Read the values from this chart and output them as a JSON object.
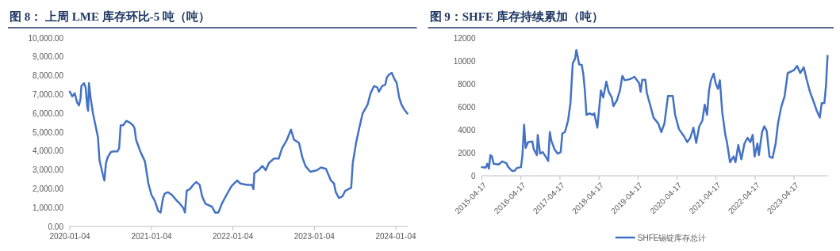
{
  "chart_data": [
    {
      "type": "line",
      "title": "图 8：  上周 LME 库存环比-5 吨（吨）",
      "series": [
        {
          "color": "#4472c4",
          "x": [
            "2020-01-04",
            "2020-01-15",
            "2020-01-26",
            "2020-02-06",
            "2020-02-14",
            "2020-02-21",
            "2020-02-25",
            "2020-03-08",
            "2020-03-15",
            "2020-03-22",
            "2020-03-26",
            "2020-03-30",
            "2020-04-06",
            "2020-04-17",
            "2020-04-28",
            "2020-05-09",
            "2020-05-16",
            "2020-05-31",
            "2020-06-07",
            "2020-06-14",
            "2020-06-22",
            "2020-07-06",
            "2020-07-17",
            "2020-08-04",
            "2020-08-12",
            "2020-08-19",
            "2020-08-30",
            "2020-09-13",
            "2020-09-28",
            "2020-10-13",
            "2020-10-20",
            "2020-10-27",
            "2020-11-15",
            "2020-12-06",
            "2020-12-21",
            "2021-01-04",
            "2021-01-19",
            "2021-02-03",
            "2021-02-14",
            "2021-02-25",
            "2021-03-04",
            "2021-03-19",
            "2021-04-06",
            "2021-04-28",
            "2021-05-12",
            "2021-05-27",
            "2021-06-03",
            "2021-06-11",
            "2021-06-25",
            "2021-07-10",
            "2021-07-24",
            "2021-08-08",
            "2021-08-19",
            "2021-09-03",
            "2021-10-02",
            "2021-10-16",
            "2021-10-31",
            "2021-11-15",
            "2021-12-06",
            "2021-12-28",
            "2022-01-23",
            "2022-02-06",
            "2022-03-08",
            "2022-03-30",
            "2022-04-06",
            "2022-04-10",
            "2022-04-28",
            "2022-05-16",
            "2022-05-31",
            "2022-06-14",
            "2022-07-06",
            "2022-07-28",
            "2022-08-12",
            "2022-09-03",
            "2022-09-21",
            "2022-10-05",
            "2022-10-27",
            "2022-11-11",
            "2022-11-25",
            "2022-12-17",
            "2023-01-15",
            "2023-02-03",
            "2023-02-25",
            "2023-03-19",
            "2023-04-02",
            "2023-04-10",
            "2023-04-24",
            "2023-05-09",
            "2023-05-23",
            "2023-06-18",
            "2023-06-25",
            "2023-07-10",
            "2023-07-24",
            "2023-08-08",
            "2023-08-30",
            "2023-09-13",
            "2023-09-28",
            "2023-10-13",
            "2023-10-20",
            "2023-11-04",
            "2023-11-18",
            "2023-11-25",
            "2023-12-06",
            "2023-12-17",
            "2023-12-28",
            "2024-01-08",
            "2024-01-19",
            "2024-01-30",
            "2024-02-10",
            "2024-02-25"
          ],
          "values": [
            7150,
            6900,
            7070,
            6570,
            6420,
            6790,
            7450,
            7600,
            7380,
            6370,
            6140,
            7600,
            6840,
            5990,
            5370,
            4750,
            3520,
            2750,
            2440,
            3360,
            3670,
            3950,
            3980,
            3980,
            4140,
            5370,
            5370,
            5600,
            5520,
            5370,
            5220,
            4600,
            3980,
            3440,
            2280,
            1670,
            1360,
            820,
            740,
            1510,
            1740,
            1820,
            1670,
            1360,
            1200,
            970,
            740,
            1900,
            1980,
            2210,
            2360,
            2210,
            1600,
            1200,
            1050,
            740,
            740,
            1200,
            1670,
            2130,
            2440,
            2280,
            2210,
            2210,
            1980,
            2830,
            2980,
            3210,
            2980,
            3360,
            3600,
            3600,
            4140,
            4600,
            5140,
            4600,
            4440,
            3670,
            3210,
            2900,
            2980,
            3130,
            3060,
            2440,
            2280,
            1820,
            1510,
            1590,
            1900,
            2050,
            3360,
            4440,
            5220,
            5990,
            6450,
            7070,
            7450,
            7380,
            7150,
            7450,
            7530,
            7920,
            8070,
            8150,
            7840,
            7610,
            6840,
            6450,
            6220,
            5990
          ]
        }
      ],
      "xlim": [
        "2020-01-04",
        "2024-02-28"
      ],
      "xticks": [
        "2020-01-04",
        "2021-01-04",
        "2022-01-04",
        "2023-01-04",
        "2024-01-04"
      ],
      "ylim": [
        0,
        10000
      ],
      "yticks": [
        {
          "value": 0,
          "label": "0.00"
        },
        {
          "value": 1000,
          "label": "1,000.00"
        },
        {
          "value": 2000,
          "label": "2,000.00"
        },
        {
          "value": 3000,
          "label": "3,000.00"
        },
        {
          "value": 4000,
          "label": "4,000.00"
        },
        {
          "value": 5000,
          "label": "5,000.00"
        },
        {
          "value": 6000,
          "label": "6,000.00"
        },
        {
          "value": 7000,
          "label": "7,000.00"
        },
        {
          "value": 8000,
          "label": "8,000.00"
        },
        {
          "value": 9000,
          "label": "9,000.00"
        },
        {
          "value": 10000,
          "label": "10,000.00"
        }
      ]
    },
    {
      "type": "line",
      "title": "图 9：SHFE 库存持续累加（吨）",
      "legend": "bottom",
      "series": [
        {
          "name": "SHFE锡锭库存总计",
          "color": "#4472c4",
          "x": [
            "2015-04-17",
            "2015-05-23",
            "2015-06-07",
            "2015-06-22",
            "2015-07-06",
            "2015-07-21",
            "2015-08-04",
            "2015-09-21",
            "2015-10-24",
            "2015-12-03",
            "2015-12-17",
            "2016-01-23",
            "2016-02-17",
            "2016-03-11",
            "2016-04-17",
            "2016-05-01",
            "2016-05-16",
            "2016-05-31",
            "2016-06-22",
            "2016-08-01",
            "2016-08-15",
            "2016-09-13",
            "2016-09-21",
            "2016-10-13",
            "2016-11-07",
            "2016-11-25",
            "2016-12-28",
            "2017-01-12",
            "2017-01-26",
            "2017-02-25",
            "2017-03-26",
            "2017-04-24",
            "2017-05-09",
            "2017-06-03",
            "2017-07-02",
            "2017-07-24",
            "2017-08-15",
            "2017-09-06",
            "2017-09-17",
            "2017-10-02",
            "2017-10-13",
            "2017-11-07",
            "2017-11-22",
            "2017-12-06",
            "2017-12-21",
            "2018-01-19",
            "2018-02-17",
            "2018-03-04",
            "2018-04-02",
            "2018-05-05",
            "2018-05-27",
            "2018-06-25",
            "2018-07-17",
            "2018-08-15",
            "2018-08-30",
            "2018-10-02",
            "2018-10-31",
            "2018-11-22",
            "2018-12-14",
            "2019-01-12",
            "2019-02-10",
            "2019-03-15",
            "2019-04-28",
            "2019-05-12",
            "2019-05-27",
            "2019-06-25",
            "2019-07-10",
            "2019-08-12",
            "2019-09-10",
            "2019-10-24",
            "2019-11-22",
            "2019-12-21",
            "2020-01-23",
            "2020-03-08",
            "2020-03-30",
            "2020-05-05",
            "2020-06-22",
            "2020-07-21",
            "2020-08-19",
            "2020-09-17",
            "2020-10-13",
            "2020-11-11",
            "2020-12-10",
            "2021-01-01",
            "2021-01-23",
            "2021-02-10",
            "2021-02-28",
            "2021-03-26",
            "2021-04-13",
            "2021-05-05",
            "2021-05-23",
            "2021-06-14",
            "2021-07-13",
            "2021-07-28",
            "2021-08-26",
            "2021-09-28",
            "2021-10-16",
            "2021-11-11",
            "2021-12-10",
            "2022-01-08",
            "2022-02-06",
            "2022-03-04",
            "2022-03-26",
            "2022-04-13",
            "2022-05-09",
            "2022-05-23",
            "2022-06-22",
            "2022-07-13",
            "2022-08-04",
            "2022-08-30",
            "2022-09-28",
            "2022-10-27",
            "2022-11-18",
            "2022-12-17",
            "2023-01-19",
            "2023-02-17",
            "2023-03-19",
            "2023-04-17",
            "2023-05-16",
            "2023-06-14",
            "2023-07-17",
            "2023-08-15",
            "2023-09-13",
            "2023-10-13",
            "2023-11-15",
            "2023-12-14",
            "2024-01-01",
            "2024-01-26",
            "2024-02-10",
            "2024-02-25"
          ],
          "values": [
            750,
            700,
            1050,
            630,
            1800,
            1680,
            1050,
            980,
            1250,
            1100,
            800,
            430,
            430,
            680,
            750,
            1800,
            4440,
            2430,
            2930,
            2980,
            2310,
            1800,
            3560,
            1930,
            2060,
            1800,
            1300,
            3810,
            3060,
            2310,
            1930,
            2060,
            3680,
            3810,
            4810,
            6320,
            9820,
            10200,
            10950,
            10330,
            9700,
            9650,
            8820,
            7440,
            5310,
            5440,
            5310,
            5440,
            4190,
            7440,
            6820,
            8200,
            7320,
            6820,
            6070,
            6570,
            7440,
            8700,
            8320,
            8370,
            8450,
            8620,
            8070,
            7320,
            8370,
            8370,
            7190,
            6070,
            5060,
            4560,
            3810,
            4560,
            6940,
            6940,
            5310,
            4060,
            3430,
            2930,
            3310,
            4190,
            2860,
            4310,
            4810,
            6190,
            5310,
            7440,
            8320,
            8900,
            8070,
            7570,
            8320,
            5560,
            3560,
            2930,
            1180,
            1680,
            1180,
            2680,
            1430,
            2810,
            3310,
            2930,
            3560,
            1680,
            2810,
            1800,
            3810,
            4310,
            3930,
            1680,
            1550,
            2810,
            4560,
            5940,
            6940,
            8950,
            9070,
            9200,
            9570,
            8950,
            9450,
            8320,
            7320,
            6570,
            5690,
            5060,
            6320,
            6320,
            7820,
            10450
          ]
        }
      ],
      "xlim": [
        "2015-04-17",
        "2024-03-01"
      ],
      "xticks": [
        "2015-04-17",
        "2016-04-17",
        "2017-04-17",
        "2018-04-17",
        "2019-04-17",
        "2020-04-17",
        "2021-04-17",
        "2022-04-17",
        "2023-04-17"
      ],
      "ylim": [
        0,
        12000
      ],
      "yticks": [
        0,
        2000,
        4000,
        6000,
        8000,
        10000,
        12000
      ]
    }
  ]
}
